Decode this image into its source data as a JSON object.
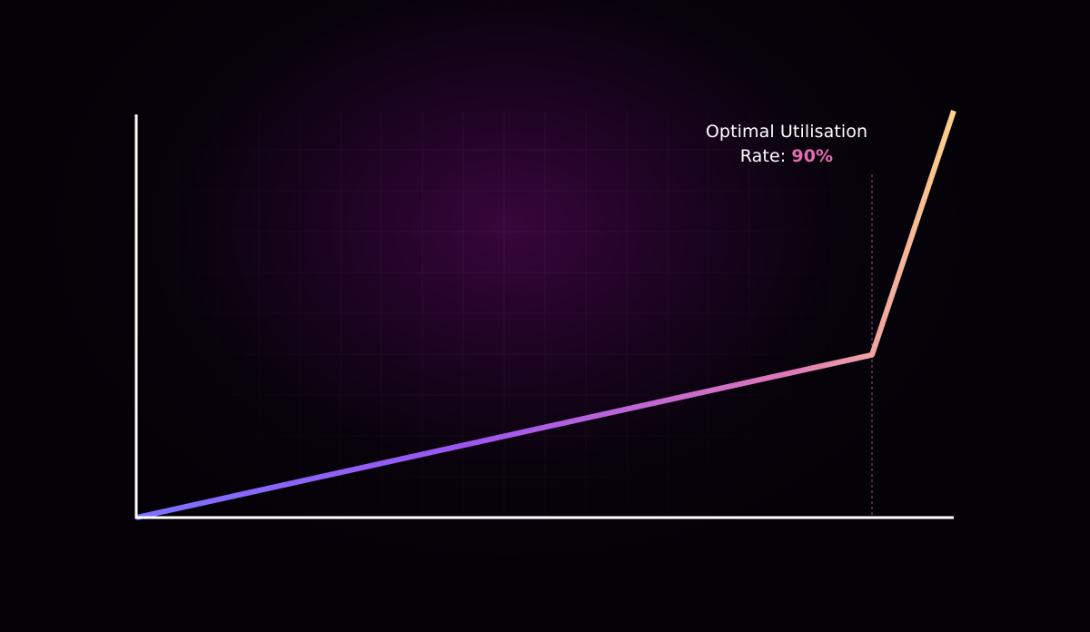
{
  "colors": {
    "background": "#040207",
    "glow": "#3a063e",
    "axis": "#ffffff",
    "line_start": "#7b73ff",
    "line_mid": "#9b55f2",
    "line_knee": "#df78b8",
    "line_end": "#ffd08a",
    "marker": "#e46cae"
  },
  "chart_data": {
    "type": "line",
    "title": "",
    "xlabel": "",
    "ylabel": "",
    "xlim": [
      0,
      100
    ],
    "ylim": [
      0,
      100
    ],
    "grid": true,
    "series": [
      {
        "x": [
          0,
          90,
          100
        ],
        "y": [
          0,
          40,
          100
        ]
      }
    ],
    "annotation": {
      "x": 90,
      "line1": "Optimal Utilisation",
      "line2_prefix": "Rate: ",
      "line2_value": "90%"
    }
  }
}
